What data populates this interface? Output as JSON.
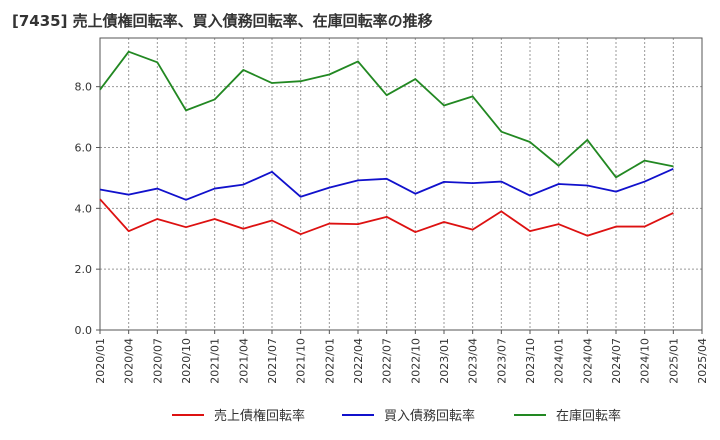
{
  "chart_data": {
    "type": "line",
    "title": "[7435]  売上債権回転率、買入債務回転率、在庫回転率の推移",
    "xlabel": "",
    "ylabel": "",
    "ylim": [
      0,
      9.6
    ],
    "yticks": [
      "0.0",
      "2.0",
      "4.0",
      "6.0",
      "8.0"
    ],
    "x_tick_labels": [
      "2020/01",
      "2020/04",
      "2020/07",
      "2020/10",
      "2021/01",
      "2021/04",
      "2021/07",
      "2021/10",
      "2022/01",
      "2022/04",
      "2022/07",
      "2022/10",
      "2023/01",
      "2023/04",
      "2023/07",
      "2023/10",
      "2024/01",
      "2024/04",
      "2024/07",
      "2024/10",
      "2025/01",
      "2025/04"
    ],
    "grid": true,
    "legend_position": "bottom",
    "series": [
      {
        "name": "売上債権回転率",
        "color": "#dd1111",
        "values": [
          4.3,
          3.25,
          3.65,
          3.38,
          3.65,
          3.33,
          3.6,
          3.15,
          3.5,
          3.48,
          3.72,
          3.22,
          3.55,
          3.3,
          3.9,
          3.25,
          3.48,
          3.1,
          3.4,
          3.4,
          3.85
        ]
      },
      {
        "name": "買入債務回転率",
        "color": "#1111cc",
        "values": [
          4.62,
          4.45,
          4.65,
          4.28,
          4.65,
          4.78,
          5.2,
          4.38,
          4.68,
          4.92,
          4.97,
          4.48,
          4.87,
          4.83,
          4.88,
          4.42,
          4.8,
          4.75,
          4.55,
          4.88,
          5.3
        ]
      },
      {
        "name": "在庫回転率",
        "color": "#228822",
        "values": [
          7.9,
          9.15,
          8.8,
          7.22,
          7.58,
          8.55,
          8.12,
          8.18,
          8.4,
          8.83,
          7.72,
          8.25,
          7.38,
          7.68,
          6.52,
          6.18,
          5.4,
          6.25,
          5.02,
          5.57,
          5.38
        ]
      }
    ]
  }
}
